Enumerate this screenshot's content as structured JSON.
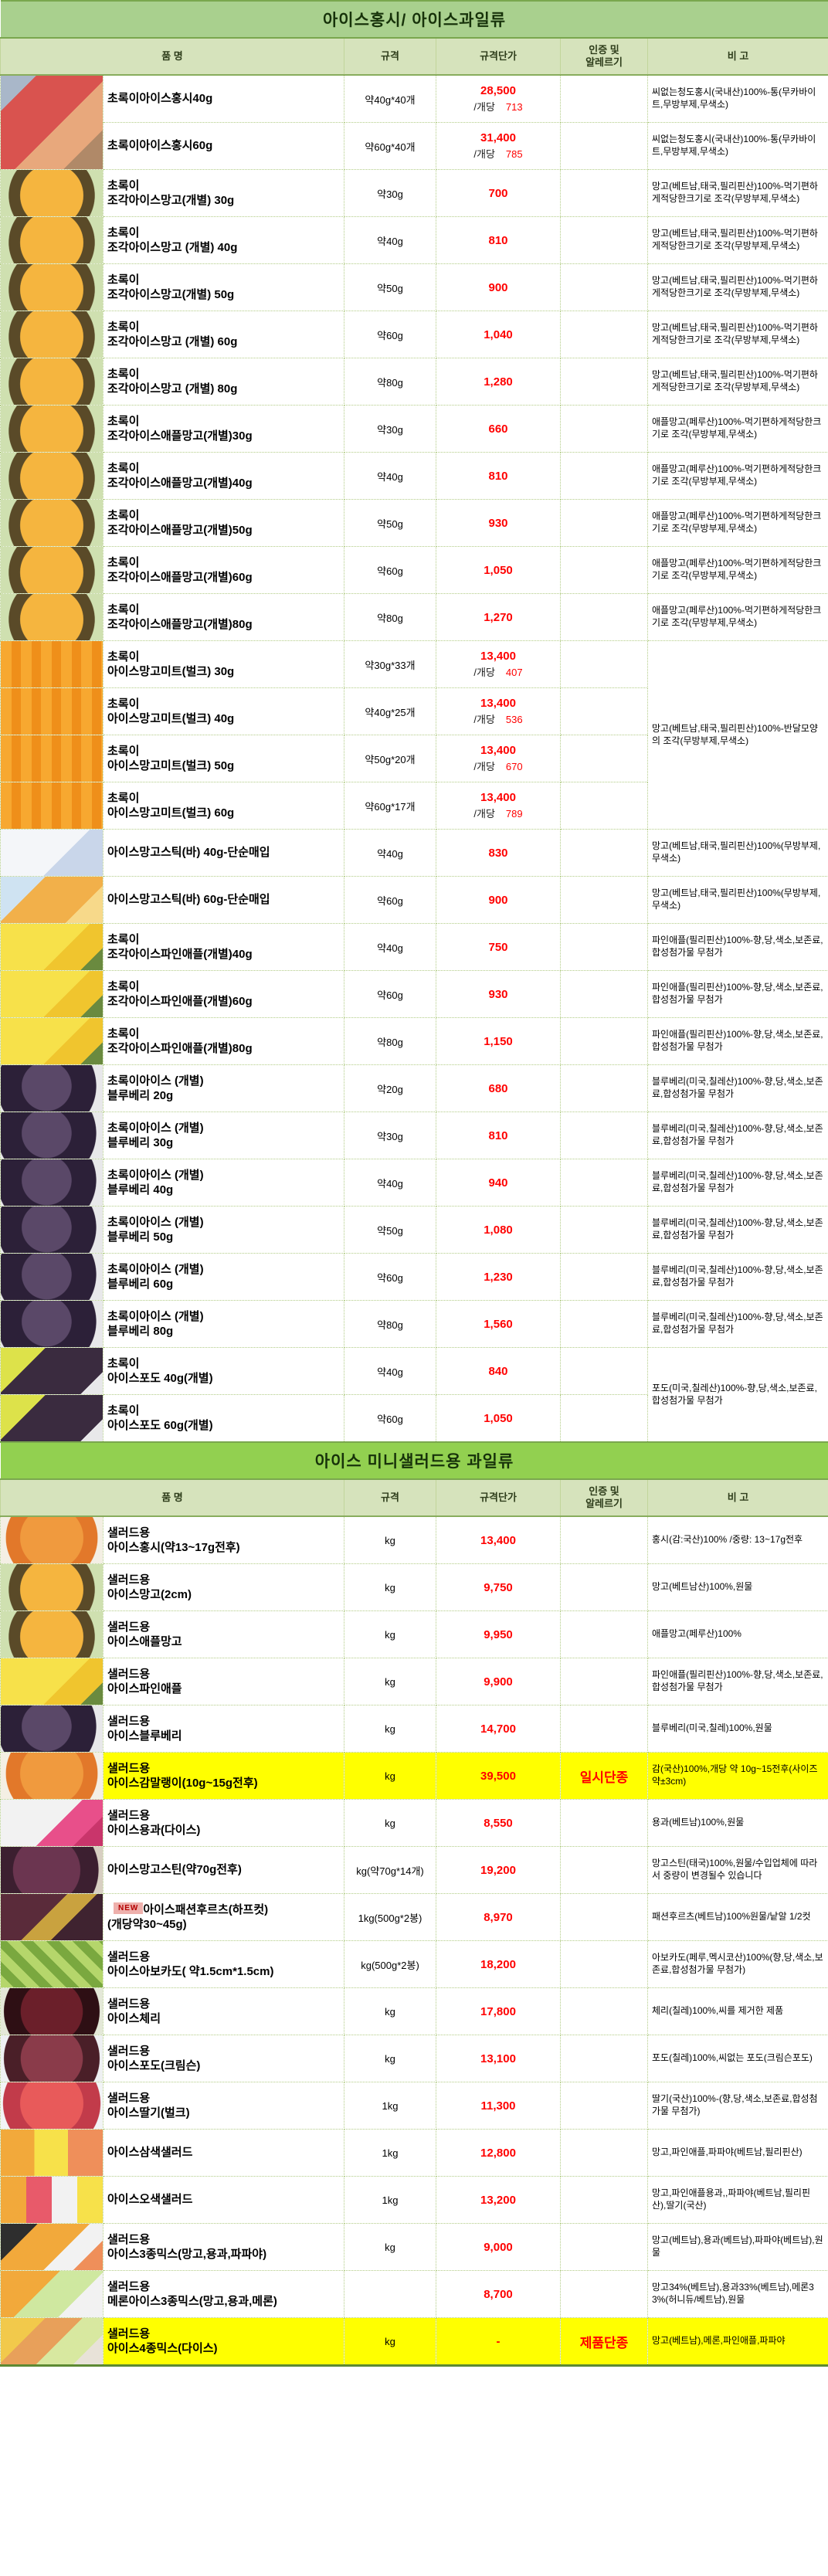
{
  "columns": {
    "name": "품          명",
    "spec": "규격",
    "price": "규격단가",
    "cert": "인증 및\n알레르기",
    "note": "비   고"
  },
  "colors": {
    "section1_title_bg": "#a9d08e",
    "section2_title_bg": "#92d050",
    "header_bg": "#d6e3bc",
    "price_red": "#ff0000",
    "highlight_yellow": "#ffff00"
  },
  "sections": [
    {
      "title": "아이스홍시/ 아이스과일류",
      "rows": [
        {
          "photo": "persimmon_cups",
          "photo_rowspan": 2,
          "name": "초록이아이스홍시40g",
          "spec": "약40g*40개",
          "price": "28,500",
          "per_label": "/개당",
          "per_value": "713",
          "cert": "",
          "note": "씨없는청도홍시(국내산)100%-통(무카바이트,무방부제,무색소)",
          "note_rowspan": 1,
          "highlight": false
        },
        {
          "photo": null,
          "name": "초록이아이스홍시60g",
          "spec": "약60g*40개",
          "price": "31,400",
          "per_label": "/개당",
          "per_value": "785",
          "cert": "",
          "note": "씨없는청도홍시(국내산)100%-통(무카바이트,무방부제,무색소)",
          "note_rowspan": 1,
          "highlight": false
        },
        {
          "photo": "mango_bowl",
          "name": "초록이\n조각아이스망고(개별) 30g",
          "spec": "약30g",
          "price": "700",
          "cert": "",
          "note": "망고(베트남,태국,필리핀산)100%-먹기편하게적당한크기로 조각(무방부제,무색소)",
          "note_rowspan": 1,
          "highlight": false
        },
        {
          "photo": "mango_bowl",
          "name": "초록이\n조각아이스망고 (개별) 40g",
          "spec": "약40g",
          "price": "810",
          "cert": "",
          "note": "망고(베트남,태국,필리핀산)100%-먹기편하게적당한크기로 조각(무방부제,무색소)",
          "note_rowspan": 1,
          "highlight": false
        },
        {
          "photo": "mango_bowl",
          "name": "초록이\n조각아이스망고(개별) 50g",
          "spec": "약50g",
          "price": "900",
          "cert": "",
          "note": "망고(베트남,태국,필리핀산)100%-먹기편하게적당한크기로 조각(무방부제,무색소)",
          "note_rowspan": 1,
          "highlight": false
        },
        {
          "photo": "mango_bowl",
          "name": "초록이\n조각아이스망고 (개별) 60g",
          "spec": "약60g",
          "price": "1,040",
          "cert": "",
          "note": "망고(베트남,태국,필리핀산)100%-먹기편하게적당한크기로 조각(무방부제,무색소)",
          "note_rowspan": 1,
          "highlight": false
        },
        {
          "photo": "mango_bowl",
          "name": "초록이\n조각아이스망고 (개별) 80g",
          "spec": "약80g",
          "price": "1,280",
          "cert": "",
          "note": "망고(베트남,태국,필리핀산)100%-먹기편하게적당한크기로 조각(무방부제,무색소)",
          "note_rowspan": 1,
          "highlight": false
        },
        {
          "photo": "mango_bowl",
          "name": "초록이\n조각아이스애플망고(개별)30g",
          "spec": "약30g",
          "price": "660",
          "cert": "",
          "note": "애플망고(페루산)100%-먹기편하게적당한크기로 조각(무방부제,무색소)",
          "note_rowspan": 1,
          "highlight": false
        },
        {
          "photo": "mango_bowl",
          "name": "초록이\n조각아이스애플망고(개별)40g",
          "spec": "약40g",
          "price": "810",
          "cert": "",
          "note": "애플망고(페루산)100%-먹기편하게적당한크기로 조각(무방부제,무색소)",
          "note_rowspan": 1,
          "highlight": false
        },
        {
          "photo": "mango_bowl",
          "name": "초록이\n조각아이스애플망고(개별)50g",
          "spec": "약50g",
          "price": "930",
          "cert": "",
          "note": "애플망고(페루산)100%-먹기편하게적당한크기로 조각(무방부제,무색소)",
          "note_rowspan": 1,
          "highlight": false
        },
        {
          "photo": "mango_bowl",
          "name": "초록이\n조각아이스애플망고(개별)60g",
          "spec": "약60g",
          "price": "1,050",
          "cert": "",
          "note": "애플망고(페루산)100%-먹기편하게적당한크기로 조각(무방부제,무색소)",
          "note_rowspan": 1,
          "highlight": false
        },
        {
          "photo": "mango_bowl",
          "name": "초록이\n조각아이스애플망고(개별)80g",
          "spec": "약80g",
          "price": "1,270",
          "cert": "",
          "note": "애플망고(페루산)100%-먹기편하게적당한크기로 조각(무방부제,무색소)",
          "note_rowspan": 1,
          "highlight": false
        },
        {
          "photo": "mango_meat",
          "name": "초록이\n아이스망고미트(벌크) 30g",
          "spec": "약30g*33개",
          "price": "13,400",
          "per_label": "/개당",
          "per_value": "407",
          "cert": "",
          "note": "망고(베트남,태국,필리핀산)100%-반달모양의 조각(무방부제,무색소)",
          "note_rowspan": 4,
          "highlight": false
        },
        {
          "photo": "mango_meat",
          "name": "초록이\n아이스망고미트(벌크) 40g",
          "spec": "약40g*25개",
          "price": "13,400",
          "per_label": "/개당",
          "per_value": "536",
          "cert": "",
          "note_rowspan": 0,
          "highlight": false
        },
        {
          "photo": "mango_meat",
          "name": "초록이\n아이스망고미트(벌크) 50g",
          "spec": "약50g*20개",
          "price": "13,400",
          "per_label": "/개당",
          "per_value": "670",
          "cert": "",
          "note_rowspan": 0,
          "highlight": false
        },
        {
          "photo": "mango_meat",
          "name": "초록이\n아이스망고미트(벌크) 60g",
          "spec": "약60g*17개",
          "price": "13,400",
          "per_label": "/개당",
          "per_value": "789",
          "cert": "",
          "note_rowspan": 0,
          "highlight": false
        },
        {
          "photo": "stick_pack",
          "name": "아이스망고스틱(바) 40g-단순매입",
          "spec": "약40g",
          "price": "830",
          "cert": "",
          "note": "망고(베트남,태국,필리핀산)100%(무방부제,무색소)",
          "note_rowspan": 1,
          "highlight": false
        },
        {
          "photo": "stick_bar",
          "name": "아이스망고스틱(바) 60g-단순매입",
          "spec": "약60g",
          "price": "900",
          "cert": "",
          "note": "망고(베트남,태국,필리핀산)100%(무방부제,무색소)",
          "note_rowspan": 1,
          "highlight": false
        },
        {
          "photo": "pineapple",
          "name": "초록이\n조각아이스파인애플(개별)40g",
          "spec": "약40g",
          "price": "750",
          "cert": "",
          "note": "파인애플(필리핀산)100%-향,당,색소,보존료,합성첨가물 무첨가",
          "note_rowspan": 1,
          "highlight": false
        },
        {
          "photo": "pineapple",
          "name": "초록이\n조각아이스파인애플(개별)60g",
          "spec": "약60g",
          "price": "930",
          "cert": "",
          "note": "파인애플(필리핀산)100%-향,당,색소,보존료,합성첨가물 무첨가",
          "note_rowspan": 1,
          "highlight": false
        },
        {
          "photo": "pineapple",
          "name": "초록이\n조각아이스파인애플(개별)80g",
          "spec": "약80g",
          "price": "1,150",
          "cert": "",
          "note": "파인애플(필리핀산)100%-향,당,색소,보존료,합성첨가물 무첨가",
          "note_rowspan": 1,
          "highlight": false
        },
        {
          "photo": "blueberry",
          "name": "초록이아이스 (개별)\n블루베리 20g",
          "spec": "약20g",
          "price": "680",
          "cert": "",
          "note": "블루베리(미국,칠레산)100%-향,당,색소,보존료,합성첨가물 무첨가",
          "note_rowspan": 1,
          "highlight": false
        },
        {
          "photo": "blueberry",
          "name": "초록이아이스 (개별)\n블루베리 30g",
          "spec": "약30g",
          "price": "810",
          "cert": "",
          "note": "블루베리(미국,칠레산)100%-향,당,색소,보존료,합성첨가물 무첨가",
          "note_rowspan": 1,
          "highlight": false
        },
        {
          "photo": "blueberry",
          "name": "초록이아이스 (개별)\n블루베리 40g",
          "spec": "약40g",
          "price": "940",
          "cert": "",
          "note": "블루베리(미국,칠레산)100%-향,당,색소,보존료,합성첨가물 무첨가",
          "note_rowspan": 1,
          "highlight": false
        },
        {
          "photo": "blueberry",
          "name": "초록이아이스 (개별)\n블루베리 50g",
          "spec": "약50g",
          "price": "1,080",
          "cert": "",
          "note": "블루베리(미국,칠레산)100%-향,당,색소,보존료,합성첨가물 무첨가",
          "note_rowspan": 1,
          "highlight": false
        },
        {
          "photo": "blueberry",
          "name": "초록이아이스 (개별)\n블루베리 60g",
          "spec": "약60g",
          "price": "1,230",
          "cert": "",
          "note": "블루베리(미국,칠레산)100%-향,당,색소,보존료,합성첨가물 무첨가",
          "note_rowspan": 1,
          "highlight": false
        },
        {
          "photo": "blueberry",
          "name": "초록이아이스 (개별)\n블루베리 80g",
          "spec": "약80g",
          "price": "1,560",
          "cert": "",
          "note": "블루베리(미국,칠레산)100%-향,당,색소,보존료,합성첨가물 무첨가",
          "note_rowspan": 1,
          "highlight": false
        },
        {
          "photo": "grapes_dark",
          "name": "초록이\n아이스포도 40g(개별)",
          "spec": "약40g",
          "price": "840",
          "cert": "",
          "note": "포도(미국,칠레산)100%-향,당,색소,보존료,합성첨가물 무첨가",
          "note_rowspan": 2,
          "highlight": false
        },
        {
          "photo": "grapes_dark",
          "name": "초록이\n아이스포도 60g(개별)",
          "spec": "약60g",
          "price": "1,050",
          "cert": "",
          "note_rowspan": 0,
          "highlight": false
        }
      ]
    },
    {
      "title": "아이스 미니샐러드용 과일류",
      "rows": [
        {
          "photo": "persimmon_slices",
          "name": "샐러드용\n아이스홍시(약13~17g전후)",
          "spec": "kg",
          "price": "13,400",
          "cert": "",
          "note": "홍시(감:국산)100% /중량: 13~17g전후",
          "note_rowspan": 1,
          "highlight": false
        },
        {
          "photo": "mango_bowl",
          "name": "샐러드용\n아이스망고(2cm)",
          "spec": "kg",
          "price": "9,750",
          "cert": "",
          "note": "망고(베트남산)100%,원물",
          "note_rowspan": 1,
          "highlight": false
        },
        {
          "photo": "mango_bowl",
          "name": "샐러드용\n아이스애플망고",
          "spec": "kg",
          "price": "9,950",
          "cert": "",
          "note": "애플망고(페루산)100%",
          "note_rowspan": 1,
          "highlight": false
        },
        {
          "photo": "pineapple",
          "name": "샐러드용\n아이스파인애플",
          "spec": "kg",
          "price": "9,900",
          "cert": "",
          "note": "파인애플(필리핀산)100%-향,당,색소,보존료,합성첨가물 무첨가",
          "note_rowspan": 1,
          "highlight": false
        },
        {
          "photo": "blueberry",
          "name": "샐러드용\n아이스블루베리",
          "spec": "kg",
          "price": "14,700",
          "cert": "",
          "note": "블루베리(미국,칠레)100%,원물",
          "note_rowspan": 1,
          "highlight": false
        },
        {
          "photo": "persimmon_slices",
          "name": "샐러드용\n아이스감말랭이(10g~15g전후)",
          "spec": "kg",
          "price": "39,500",
          "cert": "일시단종",
          "note": "감(국산)100%,개당 약 10g~15전후(사이즈약±3cm)",
          "note_rowspan": 1,
          "highlight": true
        },
        {
          "photo": "dragonfruit",
          "name": "샐러드용\n아이스용과(다이스)",
          "spec": "kg",
          "price": "8,550",
          "cert": "",
          "note": "용과(베트남)100%,원물",
          "note_rowspan": 1,
          "highlight": false
        },
        {
          "photo": "mangosteen",
          "name": "아이스망고스틴(약70g전후)",
          "spec": "kg(약70g*14개)",
          "price": "19,200",
          "cert": "",
          "note": "망고스틴(태국)100%,원물/수입업체에 따라서 중량이 변경될수 있습니다",
          "note_rowspan": 1,
          "highlight": false
        },
        {
          "photo": "passionfruit",
          "name": "아이스패션후르츠(하프컷)\n(개당약30~45g)",
          "badge": "NEW",
          "spec": "1kg(500g*2봉)",
          "price": "8,970",
          "cert": "",
          "note": "패션후르츠(베트남)100%원물/낱알 1/2컷",
          "note_rowspan": 1,
          "highlight": false
        },
        {
          "photo": "avocado",
          "name": "샐러드용\n아이스아보카도( 약1.5cm*1.5cm)",
          "spec": "kg(500g*2봉)",
          "price": "18,200",
          "cert": "",
          "note": "아보카도(페루,멕시코산)100%(향,당,색소,보존료,합성첨가물 무첨가)",
          "note_rowspan": 1,
          "highlight": false
        },
        {
          "photo": "cherry",
          "name": "샐러드용\n아이스체리",
          "spec": "kg",
          "price": "17,800",
          "cert": "",
          "note": "체리(칠레)100%,씨를 제거한 제품",
          "note_rowspan": 1,
          "highlight": false
        },
        {
          "photo": "crimson_grape",
          "name": "샐러드용\n아이스포도(크림슨)",
          "spec": "kg",
          "price": "13,100",
          "cert": "",
          "note": "포도(칠레)100%,씨없는 포도(크림슨포도)",
          "note_rowspan": 1,
          "highlight": false
        },
        {
          "photo": "strawberry",
          "name": "샐러드용\n아이스딸기(벌크)",
          "spec": "1kg",
          "price": "11,300",
          "cert": "",
          "note": "딸기(국산)100%-(향,당,색소,보존료,합성첨가물 무첨가)",
          "note_rowspan": 1,
          "highlight": false
        },
        {
          "photo": "tricolor",
          "name": "아이스삼색샐러드",
          "spec": "1kg",
          "price": "12,800",
          "cert": "",
          "note": "망고,파인애플,파파야(베트남,필리핀산)",
          "note_rowspan": 1,
          "highlight": false
        },
        {
          "photo": "fivecolor",
          "name": "아이스오색샐러드",
          "spec": "1kg",
          "price": "13,200",
          "cert": "",
          "note": "망고,파인애플용과,,파파야(베트남,필리핀산),딸기(국산)",
          "note_rowspan": 1,
          "highlight": false
        },
        {
          "photo": "mix3_bowl",
          "name": "샐러드용\n아이스3종믹스(망고,용과,파파야)",
          "spec": "kg",
          "price": "9,000",
          "cert": "",
          "note": "망고(베트남),용과(베트남),파파야(베트남),원물",
          "note_rowspan": 1,
          "highlight": false
        },
        {
          "photo": "melon_mix",
          "name": "샐러드용\n메론아이스3종믹스(망고,용과,메론)",
          "spec": "",
          "price": "8,700",
          "cert": "",
          "note": "망고34%(베트남),용과33%(베트남),메론33%(허니듀/베트남),원물",
          "note_rowspan": 1,
          "highlight": false
        },
        {
          "photo": "mix4",
          "name": "샐러드용\n아이스4종믹스(다이스)",
          "spec": "kg",
          "price": "-",
          "cert": "제품단종",
          "note": "망고(베트남),메론,파인애플,파파야",
          "note_rowspan": 1,
          "highlight": true
        }
      ]
    }
  ]
}
